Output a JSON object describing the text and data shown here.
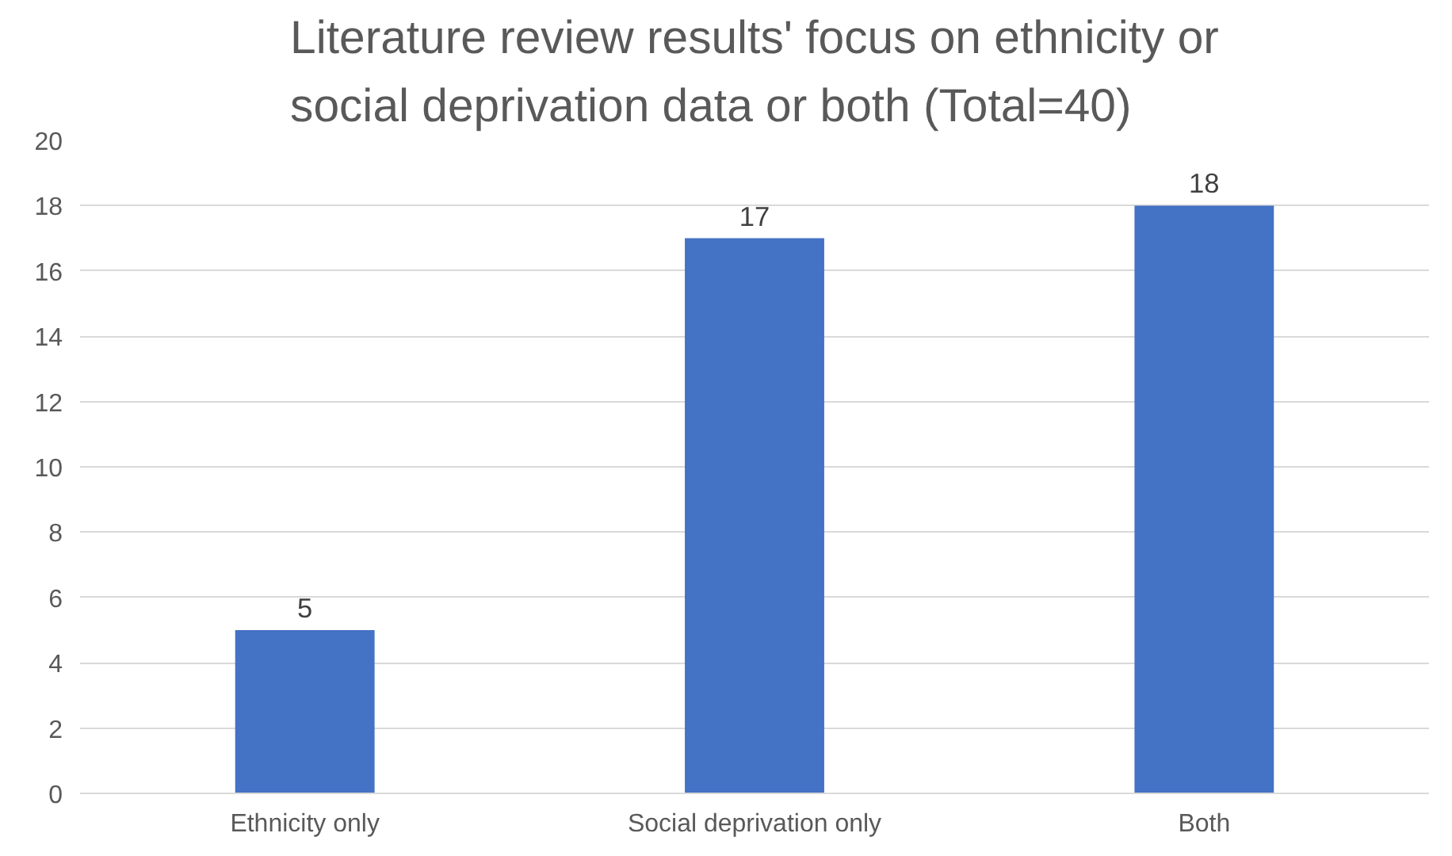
{
  "chart_data": {
    "type": "bar",
    "title": "Literature review results' focus on ethnicity or social deprivation data or both (Total=40)",
    "categories": [
      "Ethnicity only",
      "Social deprivation only",
      "Both"
    ],
    "values": [
      5,
      17,
      18
    ],
    "color": "#4472c4",
    "ylim": [
      0,
      20
    ],
    "yticks": [
      0,
      2,
      4,
      6,
      8,
      10,
      12,
      14,
      16,
      18,
      20
    ],
    "grid": "y",
    "data_labels": true
  }
}
